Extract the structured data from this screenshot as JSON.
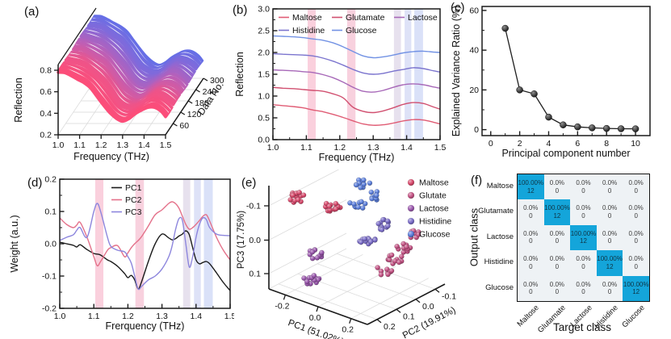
{
  "figure": {
    "background": "#ffffff"
  },
  "panels": {
    "a": {
      "label": "(a)",
      "chart_data": {
        "type": "area",
        "subtype": "3d-waterfall",
        "xlabel": "Frequency (THz)",
        "ylabel": "Reflection",
        "zlabel": "Data No.",
        "xlim": [
          1.0,
          1.5
        ],
        "ylim": [
          0.2,
          0.9
        ],
        "zlim": [
          0,
          300
        ],
        "x_ticks": [
          "1.0",
          "1.1",
          "1.2",
          "1.3",
          "1.4",
          "1.5"
        ],
        "y_ticks": [
          "0.2",
          "0.4",
          "0.6",
          "0.8"
        ],
        "z_ticks": [
          "60",
          "120",
          "180",
          "240",
          "300"
        ],
        "n_spectra": 300,
        "n_groups": 5,
        "freq": [
          1.0,
          1.03,
          1.06,
          1.09,
          1.12,
          1.15,
          1.18,
          1.21,
          1.24,
          1.27,
          1.3,
          1.33,
          1.36,
          1.39,
          1.42,
          1.45,
          1.48,
          1.5
        ],
        "profile": [
          0.78,
          0.77,
          0.75,
          0.72,
          0.68,
          0.63,
          0.56,
          0.48,
          0.4,
          0.35,
          0.33,
          0.35,
          0.39,
          0.43,
          0.46,
          0.45,
          0.41,
          0.37
        ],
        "color_stops": [
          "#fc4d79",
          "#ee5489",
          "#bd5fb6",
          "#8769d7",
          "#5f70ea"
        ]
      }
    },
    "b": {
      "label": "(b)",
      "chart_data": {
        "type": "line",
        "xlabel": "Frequency (THz)",
        "ylabel": "Reflection",
        "xlim": [
          1.0,
          1.5
        ],
        "ylim": [
          0.0,
          3.0
        ],
        "x_ticks": [
          1.0,
          1.1,
          1.2,
          1.3,
          1.4,
          1.5
        ],
        "y_ticks": [
          0.0,
          0.5,
          1.0,
          1.5,
          2.0,
          2.5,
          3.0
        ],
        "legend_position": "top-inside-two-rows",
        "x": [
          1.0,
          1.03,
          1.06,
          1.09,
          1.12,
          1.15,
          1.18,
          1.21,
          1.24,
          1.27,
          1.3,
          1.33,
          1.36,
          1.39,
          1.42,
          1.45,
          1.48,
          1.5
        ],
        "series": [
          {
            "name": "Maltose",
            "color": "#e05c74",
            "values": [
              0.8,
              0.78,
              0.76,
              0.73,
              0.68,
              0.64,
              0.58,
              0.51,
              0.43,
              0.36,
              0.33,
              0.34,
              0.38,
              0.43,
              0.46,
              0.45,
              0.4,
              0.36
            ]
          },
          {
            "name": "Glutamate",
            "color": "#d15070",
            "values": [
              1.2,
              1.18,
              1.17,
              1.15,
              1.13,
              1.11,
              1.05,
              0.96,
              0.74,
              0.65,
              0.62,
              0.66,
              0.73,
              0.81,
              0.85,
              0.83,
              0.75,
              0.7
            ]
          },
          {
            "name": "Lactose",
            "color": "#a768b8",
            "values": [
              1.6,
              1.59,
              1.58,
              1.56,
              1.54,
              1.49,
              1.42,
              1.32,
              1.2,
              1.11,
              1.09,
              1.13,
              1.2,
              1.26,
              1.28,
              1.26,
              1.21,
              1.18
            ]
          },
          {
            "name": "Histidine",
            "color": "#7b74ce",
            "values": [
              1.97,
              1.96,
              1.95,
              1.94,
              1.92,
              1.87,
              1.8,
              1.71,
              1.61,
              1.53,
              1.5,
              1.52,
              1.57,
              1.61,
              1.65,
              1.63,
              1.58,
              1.55
            ]
          },
          {
            "name": "Glucose",
            "color": "#7292e4",
            "values": [
              2.38,
              2.37,
              2.36,
              2.34,
              2.31,
              2.28,
              2.22,
              2.13,
              2.02,
              1.92,
              1.88,
              1.9,
              1.94,
              1.99,
              2.02,
              2.03,
              2.01,
              2.0
            ]
          }
        ],
        "bands": [
          {
            "x0": 1.104,
            "x1": 1.128,
            "color": "#f6aac1"
          },
          {
            "x0": 1.222,
            "x1": 1.247,
            "color": "#f2abc2"
          },
          {
            "x0": 1.362,
            "x1": 1.383,
            "color": "#d4c8e0"
          },
          {
            "x0": 1.394,
            "x1": 1.414,
            "color": "#c3caf0"
          },
          {
            "x0": 1.423,
            "x1": 1.449,
            "color": "#bcc9f3"
          }
        ]
      }
    },
    "c": {
      "label": "(c)",
      "chart_data": {
        "type": "line",
        "marker": "sphere",
        "xlabel": "Principal component number",
        "ylabel": "Explained Variance Ratio (%)",
        "xlim": [
          -0.6,
          11
        ],
        "ylim": [
          -3,
          62
        ],
        "x_ticks": [
          0,
          2,
          4,
          6,
          8,
          10
        ],
        "y_ticks": [
          0,
          20,
          40,
          60
        ],
        "x": [
          1,
          2,
          3,
          4,
          5,
          6,
          7,
          8,
          9,
          10
        ],
        "values": [
          51,
          20,
          18,
          6.3,
          2.4,
          1.4,
          0.9,
          0.6,
          0.45,
          0.4
        ],
        "line_color": "#1f1f1f"
      }
    },
    "d": {
      "label": "(d)",
      "chart_data": {
        "type": "line",
        "xlabel": "Frerquency (THz)",
        "ylabel": "Weight (a.u.)",
        "xlim": [
          1.0,
          1.5
        ],
        "ylim": [
          -0.2,
          0.2
        ],
        "x_ticks": [
          1.0,
          1.1,
          1.2,
          1.3,
          1.4,
          1.5
        ],
        "y_ticks": [
          -0.2,
          -0.1,
          0.0,
          0.1,
          0.2
        ],
        "legend_position": "top-inside-column",
        "x": [
          1.0,
          1.02,
          1.04,
          1.05,
          1.06,
          1.08,
          1.1,
          1.11,
          1.12,
          1.14,
          1.15,
          1.17,
          1.19,
          1.2,
          1.21,
          1.22,
          1.23,
          1.24,
          1.26,
          1.28,
          1.3,
          1.32,
          1.33,
          1.34,
          1.35,
          1.36,
          1.37,
          1.38,
          1.39,
          1.4,
          1.41,
          1.42,
          1.43,
          1.44,
          1.46,
          1.48,
          1.5
        ],
        "series": [
          {
            "name": "PC1",
            "color": "#1a1a1a",
            "values": [
              0.005,
              0.0,
              -0.005,
              -0.01,
              -0.003,
              -0.018,
              -0.03,
              -0.032,
              -0.035,
              -0.05,
              -0.055,
              -0.07,
              -0.092,
              -0.105,
              -0.098,
              -0.112,
              -0.14,
              -0.118,
              -0.055,
              0.0,
              0.03,
              0.018,
              0.012,
              0.016,
              0.024,
              0.03,
              0.04,
              0.028,
              -0.012,
              -0.05,
              -0.062,
              -0.058,
              -0.055,
              -0.062,
              -0.09,
              -0.12,
              -0.145
            ]
          },
          {
            "name": "PC2",
            "color": "#e4718a",
            "values": [
              0.08,
              0.06,
              0.05,
              0.058,
              0.066,
              0.02,
              -0.04,
              -0.068,
              -0.055,
              -0.02,
              -0.012,
              -0.006,
              -0.04,
              -0.028,
              -0.012,
              0.0,
              0.01,
              0.022,
              0.055,
              0.09,
              0.105,
              0.125,
              0.13,
              0.124,
              0.11,
              0.085,
              0.06,
              0.045,
              0.05,
              0.06,
              0.072,
              0.085,
              0.09,
              0.07,
              0.02,
              -0.02,
              -0.05
            ]
          },
          {
            "name": "PC3",
            "color": "#8d86dd",
            "values": [
              0.01,
              0.02,
              0.028,
              0.042,
              0.05,
              0.02,
              0.1,
              0.125,
              0.1,
              0.02,
              -0.008,
              -0.02,
              -0.025,
              -0.04,
              -0.06,
              -0.1,
              -0.14,
              -0.132,
              -0.112,
              -0.1,
              -0.078,
              -0.04,
              -0.005,
              0.045,
              0.078,
              0.072,
              0.0,
              -0.072,
              -0.04,
              0.02,
              0.06,
              0.08,
              0.075,
              0.05,
              0.03,
              0.026,
              0.025
            ]
          }
        ],
        "bands": [
          {
            "x0": 1.104,
            "x1": 1.128,
            "color": "#f6aac1"
          },
          {
            "x0": 1.222,
            "x1": 1.247,
            "color": "#f2abc2"
          },
          {
            "x0": 1.362,
            "x1": 1.383,
            "color": "#d4c8e0"
          },
          {
            "x0": 1.394,
            "x1": 1.414,
            "color": "#c3caf0"
          },
          {
            "x0": 1.423,
            "x1": 1.449,
            "color": "#bcc9f3"
          }
        ]
      }
    },
    "e": {
      "label": "(e)",
      "chart_data": {
        "type": "scatter",
        "subtype": "3d-scatter",
        "axes": {
          "x": {
            "label": "PC1 (51.02%)",
            "ticks": [
              "-0.2",
              "0.0",
              "0.2"
            ],
            "range": [
              -0.3,
              0.3
            ]
          },
          "y": {
            "label": "PC2 (19.91%)",
            "ticks": [
              "0.2",
              "0.1",
              "0.0",
              "-0.1"
            ],
            "range": [
              0.25,
              -0.15
            ]
          },
          "z": {
            "label": "PC3 (17.75%)",
            "ticks": [
              "-0.1",
              "0.0",
              "0.1"
            ],
            "range": [
              -0.15,
              0.15
            ]
          }
        },
        "series": [
          {
            "name": "Maltose",
            "color": "#d8486b",
            "clusters": [
              [
                -0.25,
                0.15,
                -0.105,
                14
              ],
              [
                -0.07,
                0.12,
                -0.1,
                18
              ]
            ]
          },
          {
            "name": "Glutate",
            "color": "#c35183",
            "clusters": [
              [
                0.22,
                -0.05,
                -0.02,
                9
              ],
              [
                0.2,
                -0.02,
                0.02,
                11
              ],
              [
                0.17,
                0.0,
                0.05,
                11
              ],
              [
                0.13,
                0.02,
                0.085,
                8
              ]
            ]
          },
          {
            "name": "Lactose",
            "color": "#9a57ad",
            "clusters": [
              [
                -0.12,
                0.17,
                0.035,
                13
              ],
              [
                -0.1,
                0.2,
                0.1,
                15
              ]
            ]
          },
          {
            "name": "Histidine",
            "color": "#7a6cc8",
            "clusters": [
              [
                0.1,
                0.0,
                -0.04,
                13
              ],
              [
                0.06,
                0.05,
                0.0,
                12
              ]
            ]
          },
          {
            "name": "Glucose",
            "color": "#5b7edc",
            "clusters": [
              [
                0.02,
                0.03,
                -0.16,
                10
              ],
              [
                0.06,
                0.02,
                -0.125,
                9
              ],
              [
                0.0,
                0.05,
                -0.095,
                9
              ]
            ]
          }
        ]
      }
    },
    "f": {
      "label": "(f)",
      "chart_data": {
        "type": "heatmap",
        "row_axis_label": "Output class",
        "col_axis_label": "Target class",
        "classes": [
          "Maltose",
          "Glutamate",
          "Lactose",
          "Histidine",
          "Glucose"
        ],
        "percent_matrix": [
          [
            "100.00%",
            "0.0%",
            "0.0%",
            "0.0%",
            "0.0%"
          ],
          [
            "0.0%",
            "100.00%",
            "0.0%",
            "0.0%",
            "0.0%"
          ],
          [
            "0.0%",
            "0.0%",
            "100.00%",
            "0.0%",
            "0.0%"
          ],
          [
            "0.0%",
            "0.0%",
            "0.0%",
            "100.00%",
            "0.0%"
          ],
          [
            "0.0%",
            "0.0%",
            "0.0%",
            "0.0%",
            "100.00%"
          ]
        ],
        "count_matrix": [
          [
            12,
            0,
            0,
            0,
            0
          ],
          [
            0,
            12,
            0,
            0,
            0
          ],
          [
            0,
            0,
            12,
            0,
            0
          ],
          [
            0,
            0,
            0,
            12,
            0
          ],
          [
            0,
            0,
            0,
            0,
            12
          ]
        ],
        "diag_color": "#14a5da",
        "off_color": "#eef2f5"
      }
    }
  }
}
